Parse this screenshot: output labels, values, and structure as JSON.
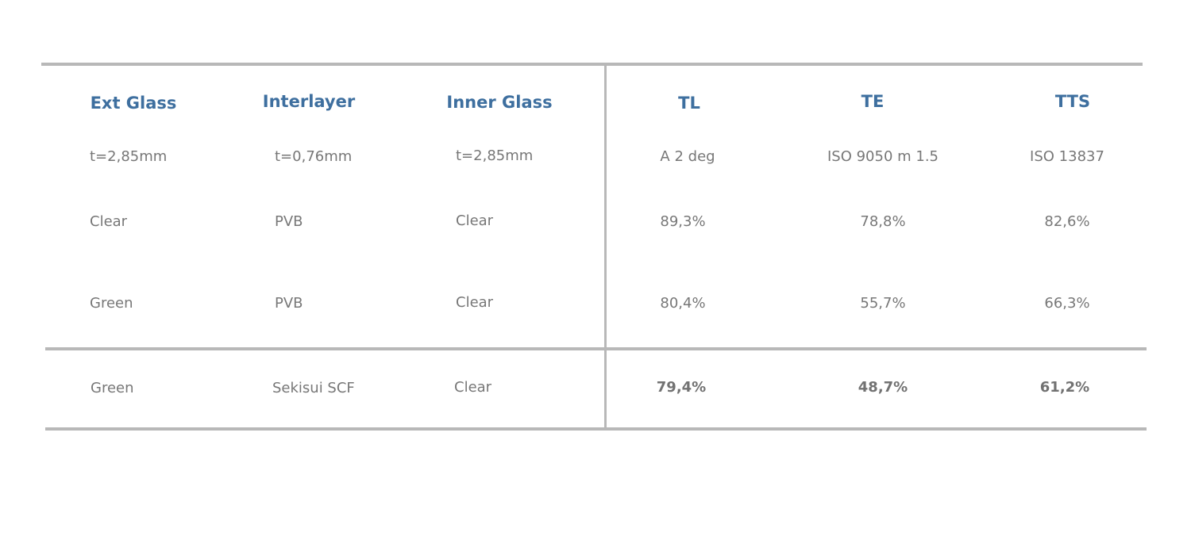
{
  "headers": [
    "Ext Glass",
    "Interlayer",
    "Inner Glass",
    "TL",
    "TE",
    "TTS"
  ],
  "spec_row": [
    "t=2,85mm",
    "t=0,76mm",
    "t=2,85mm",
    "A 2 deg",
    "ISO 9050 m 1.5",
    "ISO 13837"
  ],
  "rows": [
    [
      "Clear",
      "PVB",
      "Clear",
      "89,3%",
      "78,8%",
      "82,6%"
    ],
    [
      "Green",
      "PVB",
      "Clear",
      "80,4%",
      "55,7%",
      "66,3%"
    ]
  ],
  "highlight_row": [
    "Green",
    "Sekisui SCF",
    "Clear",
    "79,4%",
    "48,7%",
    "61,2%"
  ],
  "colors": {
    "header": "#3e6f9f",
    "text": "#777777",
    "rule": "#b8b8b8"
  }
}
